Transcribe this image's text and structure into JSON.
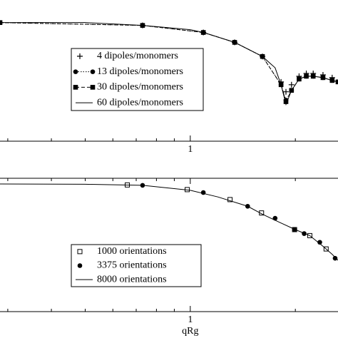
{
  "chart_data": [
    {
      "type": "line",
      "xscale": "log",
      "xlim": [
        0.285,
        2.65
      ],
      "ylim": [
        0,
        1
      ],
      "xticks": [
        1
      ],
      "xminorticks": [
        0.3,
        0.4,
        0.5,
        0.6,
        0.7,
        0.8,
        0.9,
        2
      ],
      "legend": "left",
      "series": [
        {
          "name": "4  dipoles/monomers",
          "color": "#000",
          "marker": "plus",
          "linestyle": "none",
          "x": [
            0.73,
            1.09,
            1.34,
            1.61,
            1.82,
            1.88,
            1.95,
            2.05,
            2.15,
            2.25,
            2.4,
            2.55
          ],
          "values": [
            0.82,
            0.77,
            0.7,
            0.6,
            0.42,
            0.35,
            0.4,
            0.46,
            0.48,
            0.48,
            0.47,
            0.45
          ]
        },
        {
          "name": "13 dipoles/monomers",
          "color": "#000",
          "marker": "circle",
          "linestyle": "dotted",
          "x": [
            0.285,
            0.73,
            1.09,
            1.34,
            1.61,
            1.82,
            1.88,
            1.95,
            2.05,
            2.15,
            2.25,
            2.4,
            2.55,
            2.65
          ],
          "values": [
            0.84,
            0.82,
            0.77,
            0.7,
            0.6,
            0.4,
            0.29,
            0.36,
            0.44,
            0.46,
            0.46,
            0.45,
            0.43,
            0.42
          ]
        },
        {
          "name": "30 dipoles/monomers",
          "color": "#000",
          "marker": "square",
          "linestyle": "dashed",
          "x": [
            0.285,
            0.73,
            1.09,
            1.34,
            1.61,
            1.82,
            1.88,
            1.95,
            2.05,
            2.15,
            2.25,
            2.4,
            2.55,
            2.65
          ],
          "values": [
            0.84,
            0.82,
            0.77,
            0.7,
            0.6,
            0.4,
            0.28,
            0.36,
            0.44,
            0.46,
            0.46,
            0.45,
            0.43,
            0.42
          ]
        },
        {
          "name": "60 dipoles/monomers",
          "color": "#000",
          "marker": null,
          "linestyle": "solid",
          "x": [
            0.285,
            0.5,
            0.73,
            1.0,
            1.09,
            1.34,
            1.61,
            1.75,
            1.82,
            1.88,
            1.95,
            2.05,
            2.15,
            2.25,
            2.4,
            2.55,
            2.65
          ],
          "values": [
            0.84,
            0.84,
            0.82,
            0.79,
            0.77,
            0.7,
            0.6,
            0.52,
            0.4,
            0.26,
            0.36,
            0.44,
            0.46,
            0.46,
            0.45,
            0.43,
            0.42
          ]
        }
      ]
    },
    {
      "type": "line",
      "xscale": "log",
      "xlim": [
        0.285,
        2.65
      ],
      "ylim": [
        0,
        1
      ],
      "xlabel": "qRg",
      "xticks": [
        1
      ],
      "xminorticks": [
        0.3,
        0.4,
        0.5,
        0.6,
        0.7,
        0.8,
        0.9,
        2
      ],
      "legend": "left",
      "series": [
        {
          "name": "1000 orientations",
          "color": "#000",
          "marker": "square-open",
          "linestyle": "none",
          "x": [
            0.66,
            0.98,
            1.3,
            1.6,
            1.99,
            2.2,
            2.45
          ],
          "values": [
            0.95,
            0.915,
            0.84,
            0.74,
            0.615,
            0.57,
            0.47
          ]
        },
        {
          "name": "3375 orientations",
          "color": "#000",
          "marker": "circle",
          "linestyle": "none",
          "x": [
            0.73,
            1.09,
            1.46,
            1.75,
            1.99,
            2.12,
            2.35,
            2.6
          ],
          "values": [
            0.947,
            0.893,
            0.79,
            0.7,
            0.615,
            0.585,
            0.52,
            0.4
          ]
        },
        {
          "name": "8000 orientations",
          "color": "#000",
          "marker": null,
          "linestyle": "solid",
          "x": [
            0.285,
            0.5,
            0.73,
            1.0,
            1.2,
            1.46,
            1.61,
            1.8,
            2.0,
            2.2,
            2.4,
            2.55,
            2.65
          ],
          "values": [
            0.957,
            0.955,
            0.947,
            0.91,
            0.86,
            0.79,
            0.73,
            0.67,
            0.615,
            0.57,
            0.49,
            0.43,
            0.385
          ]
        }
      ]
    }
  ]
}
